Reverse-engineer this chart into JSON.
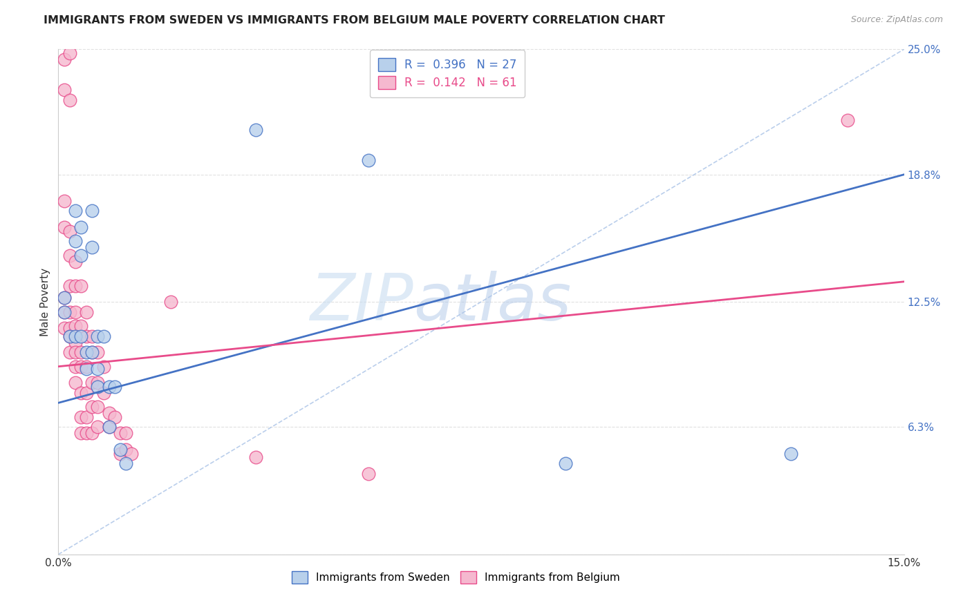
{
  "title": "IMMIGRANTS FROM SWEDEN VS IMMIGRANTS FROM BELGIUM MALE POVERTY CORRELATION CHART",
  "source": "Source: ZipAtlas.com",
  "ylabel": "Male Poverty",
  "x_min": 0.0,
  "x_max": 0.15,
  "y_min": 0.0,
  "y_max": 0.25,
  "y_tick_positions_right": [
    0.25,
    0.188,
    0.125,
    0.063,
    0.0
  ],
  "sweden_color": "#b8d0eb",
  "belgium_color": "#f5b8cf",
  "sweden_line_color": "#4472c4",
  "belgium_line_color": "#e84b8a",
  "trend_line_color": "#aec6e8",
  "background_color": "#ffffff",
  "grid_color": "#e0e0e0",
  "sweden_dots": [
    [
      0.001,
      0.127
    ],
    [
      0.001,
      0.12
    ],
    [
      0.002,
      0.108
    ],
    [
      0.003,
      0.17
    ],
    [
      0.003,
      0.155
    ],
    [
      0.003,
      0.108
    ],
    [
      0.004,
      0.162
    ],
    [
      0.004,
      0.148
    ],
    [
      0.004,
      0.108
    ],
    [
      0.005,
      0.1
    ],
    [
      0.005,
      0.092
    ],
    [
      0.006,
      0.17
    ],
    [
      0.006,
      0.152
    ],
    [
      0.006,
      0.1
    ],
    [
      0.007,
      0.108
    ],
    [
      0.007,
      0.092
    ],
    [
      0.007,
      0.083
    ],
    [
      0.008,
      0.108
    ],
    [
      0.009,
      0.083
    ],
    [
      0.009,
      0.063
    ],
    [
      0.01,
      0.083
    ],
    [
      0.011,
      0.052
    ],
    [
      0.012,
      0.045
    ],
    [
      0.035,
      0.21
    ],
    [
      0.055,
      0.195
    ],
    [
      0.09,
      0.045
    ],
    [
      0.13,
      0.05
    ]
  ],
  "belgium_dots": [
    [
      0.001,
      0.245
    ],
    [
      0.001,
      0.23
    ],
    [
      0.001,
      0.175
    ],
    [
      0.001,
      0.162
    ],
    [
      0.001,
      0.127
    ],
    [
      0.001,
      0.12
    ],
    [
      0.001,
      0.112
    ],
    [
      0.002,
      0.248
    ],
    [
      0.002,
      0.225
    ],
    [
      0.002,
      0.16
    ],
    [
      0.002,
      0.148
    ],
    [
      0.002,
      0.133
    ],
    [
      0.002,
      0.12
    ],
    [
      0.002,
      0.112
    ],
    [
      0.002,
      0.108
    ],
    [
      0.002,
      0.1
    ],
    [
      0.003,
      0.145
    ],
    [
      0.003,
      0.133
    ],
    [
      0.003,
      0.12
    ],
    [
      0.003,
      0.113
    ],
    [
      0.003,
      0.105
    ],
    [
      0.003,
      0.1
    ],
    [
      0.003,
      0.093
    ],
    [
      0.003,
      0.085
    ],
    [
      0.004,
      0.133
    ],
    [
      0.004,
      0.113
    ],
    [
      0.004,
      0.1
    ],
    [
      0.004,
      0.093
    ],
    [
      0.004,
      0.08
    ],
    [
      0.004,
      0.068
    ],
    [
      0.004,
      0.06
    ],
    [
      0.005,
      0.12
    ],
    [
      0.005,
      0.108
    ],
    [
      0.005,
      0.093
    ],
    [
      0.005,
      0.08
    ],
    [
      0.005,
      0.068
    ],
    [
      0.005,
      0.06
    ],
    [
      0.006,
      0.108
    ],
    [
      0.006,
      0.1
    ],
    [
      0.006,
      0.085
    ],
    [
      0.006,
      0.073
    ],
    [
      0.006,
      0.06
    ],
    [
      0.007,
      0.1
    ],
    [
      0.007,
      0.085
    ],
    [
      0.007,
      0.073
    ],
    [
      0.007,
      0.063
    ],
    [
      0.008,
      0.093
    ],
    [
      0.008,
      0.08
    ],
    [
      0.009,
      0.07
    ],
    [
      0.009,
      0.063
    ],
    [
      0.01,
      0.068
    ],
    [
      0.011,
      0.06
    ],
    [
      0.011,
      0.05
    ],
    [
      0.012,
      0.06
    ],
    [
      0.012,
      0.052
    ],
    [
      0.013,
      0.05
    ],
    [
      0.02,
      0.125
    ],
    [
      0.035,
      0.048
    ],
    [
      0.055,
      0.04
    ],
    [
      0.14,
      0.215
    ]
  ],
  "sweden_line_x": [
    0.0,
    0.15
  ],
  "sweden_line_y": [
    0.075,
    0.188
  ],
  "belgium_line_x": [
    0.0,
    0.15
  ],
  "belgium_line_y": [
    0.093,
    0.135
  ],
  "diag_line_x": [
    0.0,
    0.15
  ],
  "diag_line_y": [
    0.0,
    0.25
  ]
}
